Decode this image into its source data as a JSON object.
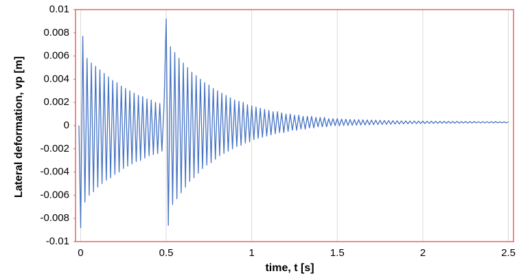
{
  "chart_data": {
    "type": "line",
    "y_label": "Lateral deformation, vp [m]",
    "x_label": "time, t [s]",
    "color": "#4472c4",
    "grid": "x",
    "xlim": [
      -0.03,
      2.53
    ],
    "xticks": [
      0,
      0.5,
      1,
      1.5,
      2,
      2.5
    ],
    "ylim": [
      -0.01,
      0.01
    ],
    "yticks": [
      0.01,
      0.008,
      0.006,
      0.004,
      0.002,
      0,
      -0.002,
      -0.004,
      -0.006,
      -0.008,
      -0.01
    ],
    "x": [
      -0.01,
      0,
      0.0125,
      0.025,
      0.0375,
      0.05,
      0.0625,
      0.075,
      0.0875,
      0.1,
      0.1125,
      0.125,
      0.1375,
      0.15,
      0.1625,
      0.175,
      0.1875,
      0.2,
      0.2125,
      0.225,
      0.2375,
      0.25,
      0.2625,
      0.275,
      0.2875,
      0.3,
      0.3125,
      0.325,
      0.3375,
      0.35,
      0.3625,
      0.375,
      0.3875,
      0.4,
      0.4125,
      0.425,
      0.4375,
      0.45,
      0.4625,
      0.475,
      0.4875,
      0.5,
      0.5125,
      0.525,
      0.5375,
      0.55,
      0.5625,
      0.575,
      0.5875,
      0.6,
      0.6125,
      0.625,
      0.6375,
      0.65,
      0.6625,
      0.675,
      0.6875,
      0.7,
      0.7125,
      0.725,
      0.7375,
      0.75,
      0.7625,
      0.775,
      0.7875,
      0.8,
      0.8125,
      0.825,
      0.8375,
      0.85,
      0.8625,
      0.875,
      0.8875,
      0.9,
      0.9125,
      0.925,
      0.9375,
      0.95,
      0.9625,
      0.975,
      0.9875,
      1,
      1.0125,
      1.025,
      1.0375,
      1.05,
      1.0625,
      1.075,
      1.0875,
      1.1,
      1.1125,
      1.125,
      1.1375,
      1.15,
      1.1625,
      1.175,
      1.1875,
      1.2,
      1.2125,
      1.225,
      1.2375,
      1.25,
      1.2625,
      1.275,
      1.2875,
      1.3,
      1.3125,
      1.325,
      1.3375,
      1.35,
      1.3625,
      1.375,
      1.3875,
      1.4,
      1.4125,
      1.425,
      1.4375,
      1.45,
      1.4625,
      1.475,
      1.4875,
      1.5,
      1.5125,
      1.525,
      1.5375,
      1.55,
      1.5625,
      1.575,
      1.5875,
      1.6,
      1.6125,
      1.625,
      1.6375,
      1.65,
      1.6625,
      1.675,
      1.6875,
      1.7,
      1.7125,
      1.725,
      1.7375,
      1.75,
      1.7625,
      1.775,
      1.7875,
      1.8,
      1.8125,
      1.825,
      1.8375,
      1.85,
      1.8625,
      1.875,
      1.8875,
      1.9,
      1.9125,
      1.925,
      1.9375,
      1.95,
      1.9625,
      1.975,
      1.9875,
      2,
      2.0125,
      2.025,
      2.0375,
      2.05,
      2.0625,
      2.075,
      2.0875,
      2.1,
      2.1125,
      2.125,
      2.1375,
      2.15,
      2.1625,
      2.175,
      2.1875,
      2.2,
      2.2125,
      2.225,
      2.2375,
      2.25,
      2.2625,
      2.275,
      2.2875,
      2.3,
      2.3125,
      2.325,
      2.3375,
      2.35,
      2.3625,
      2.375,
      2.3875,
      2.4,
      2.4125,
      2.425,
      2.4375,
      2.45,
      2.4625,
      2.475,
      2.4875,
      2.5
    ],
    "values": [
      0,
      -0.0088,
      0.0077,
      -0.0066,
      0.0058,
      -0.006,
      0.0054,
      -0.0057,
      0.0051,
      -0.0053,
      0.0048,
      -0.005,
      0.0045,
      -0.0047,
      0.0042,
      -0.0045,
      0.0039,
      -0.0042,
      0.0037,
      -0.004,
      0.0034,
      -0.0037,
      0.0032,
      -0.0035,
      0.003,
      -0.0033,
      0.0028,
      -0.0031,
      0.0026,
      -0.003,
      0.0025,
      -0.0028,
      0.0023,
      -0.0026,
      0.0022,
      -0.0025,
      0.002,
      -0.0024,
      0.0019,
      -0.0022,
      0.0018,
      0.0092,
      -0.0086,
      0.0068,
      -0.0068,
      0.0063,
      -0.0063,
      0.0058,
      -0.0058,
      0.0054,
      -0.0053,
      0.005,
      -0.0048,
      0.0046,
      -0.0045,
      0.0043,
      -0.0041,
      0.004,
      -0.0037,
      0.0037,
      -0.0034,
      0.0035,
      -0.0032,
      0.0032,
      -0.0029,
      0.003,
      -0.0026,
      0.0028,
      -0.0024,
      0.0026,
      -0.0022,
      0.0024,
      -0.002,
      0.0022,
      -0.0018,
      0.0021,
      -0.0017,
      0.002,
      -0.0015,
      0.0018,
      -0.0014,
      0.0017,
      -0.0012,
      0.0016,
      -0.0011,
      0.0015,
      -0.001,
      0.0014,
      -0.0009,
      0.0013,
      -0.0008,
      0.0012,
      -0.0007,
      0.0012,
      -0.0006,
      0.0011,
      -0.0006,
      0.001,
      -0.0005,
      0.001,
      -0.0004,
      0.0009,
      -0.0004,
      0.0009,
      -0.0003,
      0.0008,
      -0.0003,
      0.0008,
      -0.0002,
      0.0008,
      -0.0002,
      0.0007,
      -0.0001,
      0.0007,
      -0.0001,
      0.0007,
      -0.0001,
      0.0006,
      0,
      0.0006,
      0,
      0.0006,
      -2e-05,
      0.00056,
      1e-05,
      0.00055,
      2e-05,
      0.00053,
      3e-05,
      0.00052,
      4e-05,
      0.00051,
      5e-05,
      0.0005,
      6e-05,
      0.00049,
      7e-05,
      0.00048,
      8e-05,
      0.00047,
      9e-05,
      0.00046,
      0.0001,
      0.00045,
      0.00011,
      0.00044,
      0.00012,
      0.00043,
      0.00013,
      0.00042,
      0.00014,
      0.00041,
      0.00015,
      0.00041,
      0.00016,
      0.0004,
      0.00017,
      0.0004,
      0.00017,
      0.00039,
      0.00018,
      0.00039,
      0.00018,
      0.00038,
      0.00019,
      0.00038,
      0.00019,
      0.00037,
      0.0002,
      0.00037,
      0.0002,
      0.00037,
      0.0002,
      0.00036,
      0.00021,
      0.00036,
      0.00021,
      0.00036,
      0.00021,
      0.00035,
      0.00022,
      0.00035,
      0.00022,
      0.00035,
      0.00022,
      0.00035,
      0.00023,
      0.00034,
      0.00023,
      0.00034,
      0.00023,
      0.00034,
      0.00023,
      0.00034,
      0.00024,
      0.00034,
      0.00024,
      0.00033,
      0.00024,
      0.00033,
      0.00024,
      0.00033
    ]
  }
}
